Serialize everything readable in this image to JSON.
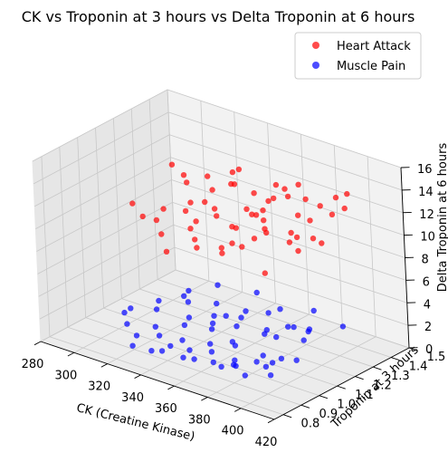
{
  "chart_data": {
    "type": "scatter",
    "title": "CK vs Troponin at 3 hours vs Delta Troponin at 6 hours",
    "xlabel": "CK (Creatine Kinase)",
    "ylabel": "Troponin at 3 hours",
    "zlabel": "Delta Troponin at 6 hours",
    "xlim": [
      280,
      420
    ],
    "ylim": [
      0.75,
      1.5
    ],
    "zlim": [
      0,
      16
    ],
    "xticks": [
      "280",
      "300",
      "320",
      "340",
      "360",
      "380",
      "400",
      "420"
    ],
    "yticks": [
      "0.8",
      "0.9",
      "1.0",
      "1.1",
      "1.2",
      "1.3",
      "1.4",
      "1.5"
    ],
    "zticks": [
      "0",
      "2",
      "4",
      "6",
      "8",
      "10",
      "12",
      "14",
      "16"
    ],
    "grid": true,
    "legend_position": "top-right",
    "series": [
      {
        "name": "Heart Attack",
        "color": "#ff0000",
        "points": [
          [
            306,
            1.05,
            11.0
          ],
          [
            312,
            1.22,
            13.3
          ],
          [
            318,
            1.11,
            10.6
          ],
          [
            322,
            1.3,
            9.8
          ],
          [
            325,
            1.18,
            12.7
          ],
          [
            328,
            0.98,
            11.2
          ],
          [
            330,
            1.25,
            12.9
          ],
          [
            333,
            1.15,
            9.9
          ],
          [
            335,
            1.35,
            11.6
          ],
          [
            338,
            1.08,
            12.4
          ],
          [
            340,
            1.2,
            10.3
          ],
          [
            342,
            1.28,
            13.6
          ],
          [
            344,
            1.02,
            10.9
          ],
          [
            346,
            1.4,
            9.4
          ],
          [
            348,
            1.12,
            12.0
          ],
          [
            350,
            1.32,
            11.8
          ],
          [
            352,
            1.18,
            13.9
          ],
          [
            354,
            0.96,
            10.2
          ],
          [
            356,
            1.25,
            10.8
          ],
          [
            358,
            1.37,
            12.5
          ],
          [
            360,
            1.1,
            9.7
          ],
          [
            362,
            1.22,
            11.3
          ],
          [
            364,
            1.3,
            12.2
          ],
          [
            366,
            1.05,
            11.9
          ],
          [
            368,
            1.15,
            10.1
          ],
          [
            370,
            1.42,
            11.4
          ],
          [
            372,
            1.2,
            13.2
          ],
          [
            374,
            1.0,
            12.6
          ],
          [
            376,
            1.28,
            9.9
          ],
          [
            378,
            1.12,
            11.7
          ],
          [
            380,
            1.35,
            10.6
          ],
          [
            382,
            1.08,
            13.0
          ],
          [
            384,
            1.25,
            12.1
          ],
          [
            386,
            1.18,
            10.4
          ],
          [
            388,
            1.4,
            11.1
          ],
          [
            390,
            1.02,
            12.8
          ],
          [
            392,
            1.3,
            9.6
          ],
          [
            394,
            1.15,
            11.5
          ],
          [
            396,
            1.22,
            10.9
          ],
          [
            398,
            1.38,
            12.3
          ],
          [
            400,
            1.1,
            11.0
          ],
          [
            334,
            0.95,
            10.5
          ],
          [
            346,
            0.98,
            12.9
          ],
          [
            356,
            1.45,
            10.7
          ],
          [
            366,
            1.42,
            12.5
          ],
          [
            376,
            0.9,
            11.3
          ],
          [
            386,
            0.92,
            12.2
          ],
          [
            318,
            1.38,
            10.0
          ],
          [
            328,
            1.44,
            11.8
          ],
          [
            340,
            0.92,
            9.5
          ],
          [
            352,
            1.47,
            11.0
          ],
          [
            362,
            0.88,
            12.0
          ],
          [
            372,
            1.48,
            10.4
          ],
          [
            384,
            1.46,
            11.9
          ],
          [
            396,
            0.95,
            10.1
          ],
          [
            310,
            1.3,
            11.6
          ],
          [
            322,
            0.96,
            11.4
          ],
          [
            344,
            1.33,
            10.0
          ],
          [
            368,
            0.97,
            10.8
          ],
          [
            392,
            1.45,
            12.7
          ]
        ]
      },
      {
        "name": "Muscle Pain",
        "color": "#0000ff",
        "points": [
          [
            302,
            1.05,
            1.5
          ],
          [
            306,
            0.98,
            1.9
          ],
          [
            310,
            1.12,
            1.2
          ],
          [
            314,
            0.92,
            1.8
          ],
          [
            318,
            1.2,
            2.1
          ],
          [
            320,
            1.02,
            1.0
          ],
          [
            324,
            0.88,
            1.6
          ],
          [
            326,
            1.15,
            2.4
          ],
          [
            330,
            0.95,
            1.3
          ],
          [
            332,
            1.25,
            1.7
          ],
          [
            334,
            1.08,
            2.0
          ],
          [
            336,
            0.85,
            1.1
          ],
          [
            338,
            1.18,
            1.5
          ],
          [
            340,
            1.0,
            2.3
          ],
          [
            342,
            0.9,
            1.4
          ],
          [
            344,
            1.3,
            1.2
          ],
          [
            346,
            1.1,
            1.9
          ],
          [
            348,
            0.95,
            0.9
          ],
          [
            350,
            1.22,
            1.6
          ],
          [
            352,
            1.04,
            2.2
          ],
          [
            354,
            0.86,
            1.3
          ],
          [
            356,
            1.14,
            1.8
          ],
          [
            358,
            0.98,
            1.0
          ],
          [
            360,
            1.28,
            2.0
          ],
          [
            362,
            1.06,
            1.4
          ],
          [
            364,
            0.92,
            2.5
          ],
          [
            366,
            1.2,
            1.1
          ],
          [
            368,
            1.02,
            1.7
          ],
          [
            370,
            0.88,
            1.5
          ],
          [
            372,
            1.16,
            2.1
          ],
          [
            374,
            0.96,
            1.2
          ],
          [
            376,
            1.24,
            1.9
          ],
          [
            378,
            1.08,
            0.8
          ],
          [
            380,
            0.9,
            1.6
          ],
          [
            382,
            1.12,
            2.3
          ],
          [
            384,
            0.99,
            1.3
          ],
          [
            386,
            1.26,
            1.8
          ],
          [
            388,
            1.04,
            1.0
          ],
          [
            390,
            0.87,
            1.4
          ],
          [
            392,
            1.18,
            2.0
          ],
          [
            394,
            0.95,
            1.7
          ],
          [
            396,
            1.1,
            1.1
          ],
          [
            398,
            1.0,
            2.2
          ],
          [
            400,
            0.92,
            1.5
          ],
          [
            312,
            1.28,
            1.6
          ],
          [
            322,
            1.35,
            2.0
          ],
          [
            328,
            0.82,
            1.4
          ],
          [
            340,
            1.4,
            1.8
          ],
          [
            348,
            0.8,
            2.1
          ],
          [
            356,
            1.38,
            1.3
          ],
          [
            364,
            0.83,
            1.9
          ],
          [
            372,
            1.42,
            1.6
          ],
          [
            380,
            1.32,
            1.2
          ],
          [
            388,
            0.84,
            2.4
          ],
          [
            396,
            1.36,
            1.9
          ],
          [
            316,
            1.08,
            2.6
          ],
          [
            336,
            1.02,
            0.6
          ],
          [
            352,
            1.12,
            2.7
          ],
          [
            368,
            0.94,
            0.5
          ],
          [
            384,
            1.2,
            2.6
          ]
        ]
      }
    ]
  }
}
